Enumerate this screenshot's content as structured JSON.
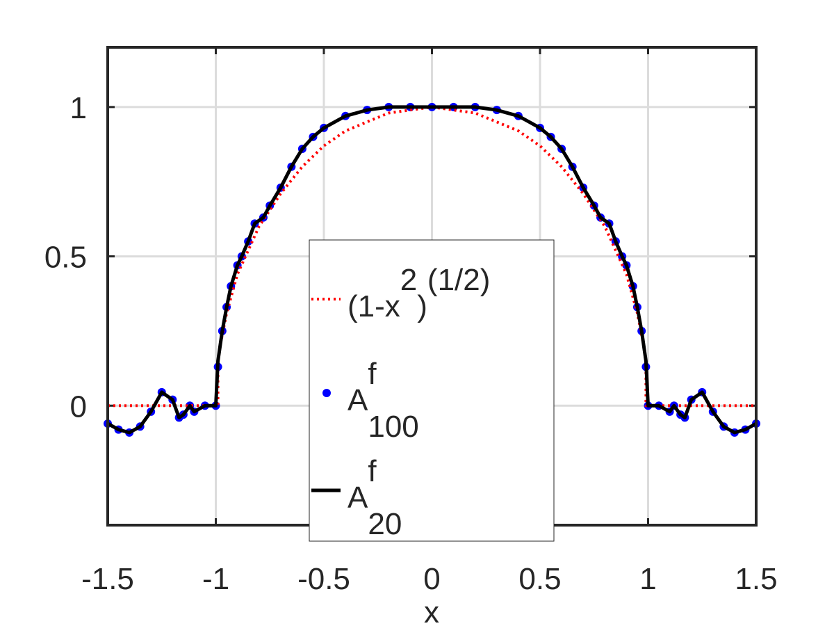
{
  "chart_data": {
    "type": "line",
    "xlabel": "x",
    "xlim": [
      -1.5,
      1.5
    ],
    "xticks": [
      -1.5,
      -1,
      -0.5,
      0,
      0.5,
      1,
      1.5
    ],
    "ylim": [
      -0.4,
      1.2
    ],
    "yticks": [
      0,
      0.5,
      1
    ],
    "grid": true,
    "legend": "center",
    "series": [
      {
        "name": [
          "(1-x",
          "2",
          ")",
          "(1/2)"
        ],
        "name_script": [
          "base",
          "super",
          "base",
          "super"
        ],
        "color": "#ff0000",
        "style": "dotted",
        "x": [
          -1.5,
          -0.99,
          -0.99,
          -0.98,
          -0.95,
          -0.9,
          -0.8,
          -0.7,
          -0.6,
          -0.5,
          -0.4,
          -0.3,
          -0.2,
          -0.1,
          0,
          0.1,
          0.2,
          0.3,
          0.4,
          0.5,
          0.6,
          0.7,
          0.8,
          0.9,
          0.95,
          0.98,
          0.99,
          0.99,
          1.5
        ],
        "values": [
          0,
          0,
          0.14,
          0.2,
          0.31,
          0.44,
          0.6,
          0.71,
          0.8,
          0.87,
          0.92,
          0.95,
          0.98,
          0.99,
          1,
          0.99,
          0.98,
          0.95,
          0.92,
          0.87,
          0.8,
          0.71,
          0.6,
          0.44,
          0.31,
          0.2,
          0.14,
          0,
          0
        ]
      },
      {
        "name": [
          "A",
          "f",
          "100"
        ],
        "name_script": [
          "base",
          "super",
          "sub"
        ],
        "color": "#0000ff",
        "style": "dots",
        "x": [
          -1.5,
          -1.45,
          -1.4,
          -1.35,
          -1.3,
          -1.25,
          -1.2,
          -1.17,
          -1.15,
          -1.12,
          -1.1,
          -1.05,
          -1.0,
          -0.99,
          -0.97,
          -0.95,
          -0.93,
          -0.9,
          -0.88,
          -0.85,
          -0.82,
          -0.78,
          -0.75,
          -0.7,
          -0.65,
          -0.6,
          -0.55,
          -0.5,
          -0.4,
          -0.3,
          -0.2,
          -0.1,
          0,
          0.1,
          0.2,
          0.3,
          0.4,
          0.5,
          0.55,
          0.6,
          0.65,
          0.7,
          0.75,
          0.78,
          0.82,
          0.85,
          0.88,
          0.9,
          0.93,
          0.95,
          0.97,
          0.99,
          1.0,
          1.05,
          1.1,
          1.12,
          1.15,
          1.17,
          1.2,
          1.25,
          1.3,
          1.35,
          1.4,
          1.45,
          1.5
        ],
        "values": [
          -0.06,
          -0.08,
          -0.09,
          -0.07,
          -0.02,
          0.045,
          0.02,
          -0.04,
          -0.03,
          0.0,
          -0.02,
          0.0,
          0.0,
          0.13,
          0.25,
          0.33,
          0.4,
          0.47,
          0.5,
          0.55,
          0.61,
          0.63,
          0.67,
          0.73,
          0.8,
          0.86,
          0.9,
          0.93,
          0.97,
          0.99,
          1.0,
          1.0,
          1.0,
          1.0,
          1.0,
          0.99,
          0.97,
          0.93,
          0.9,
          0.86,
          0.8,
          0.73,
          0.67,
          0.63,
          0.61,
          0.55,
          0.5,
          0.47,
          0.4,
          0.33,
          0.25,
          0.13,
          0.0,
          0.0,
          -0.02,
          0.0,
          -0.03,
          -0.04,
          0.02,
          0.045,
          -0.02,
          -0.07,
          -0.09,
          -0.08,
          -0.06
        ]
      },
      {
        "name": [
          "A",
          "f",
          "20"
        ],
        "name_script": [
          "base",
          "super",
          "sub"
        ],
        "color": "#000000",
        "style": "solid",
        "x": [
          -1.5,
          -1.45,
          -1.4,
          -1.35,
          -1.3,
          -1.25,
          -1.2,
          -1.17,
          -1.15,
          -1.12,
          -1.1,
          -1.05,
          -1.0,
          -0.99,
          -0.97,
          -0.95,
          -0.93,
          -0.9,
          -0.88,
          -0.85,
          -0.82,
          -0.78,
          -0.75,
          -0.7,
          -0.65,
          -0.6,
          -0.55,
          -0.5,
          -0.4,
          -0.3,
          -0.2,
          -0.1,
          0,
          0.1,
          0.2,
          0.3,
          0.4,
          0.5,
          0.55,
          0.6,
          0.65,
          0.7,
          0.75,
          0.78,
          0.82,
          0.85,
          0.88,
          0.9,
          0.93,
          0.95,
          0.97,
          0.99,
          1.0,
          1.05,
          1.1,
          1.12,
          1.15,
          1.17,
          1.2,
          1.25,
          1.3,
          1.35,
          1.4,
          1.45,
          1.5
        ],
        "values": [
          -0.06,
          -0.08,
          -0.09,
          -0.07,
          -0.02,
          0.045,
          0.02,
          -0.04,
          -0.03,
          0.0,
          -0.02,
          0.0,
          0.0,
          0.15,
          0.25,
          0.33,
          0.4,
          0.47,
          0.5,
          0.55,
          0.61,
          0.63,
          0.67,
          0.73,
          0.8,
          0.86,
          0.9,
          0.93,
          0.97,
          0.99,
          1.0,
          1.0,
          1.0,
          1.0,
          1.0,
          0.99,
          0.97,
          0.93,
          0.9,
          0.86,
          0.8,
          0.73,
          0.67,
          0.63,
          0.61,
          0.55,
          0.5,
          0.47,
          0.4,
          0.33,
          0.25,
          0.15,
          0.0,
          0.0,
          -0.02,
          0.0,
          -0.03,
          -0.04,
          0.02,
          0.045,
          -0.02,
          -0.07,
          -0.09,
          -0.08,
          -0.06
        ]
      }
    ]
  }
}
